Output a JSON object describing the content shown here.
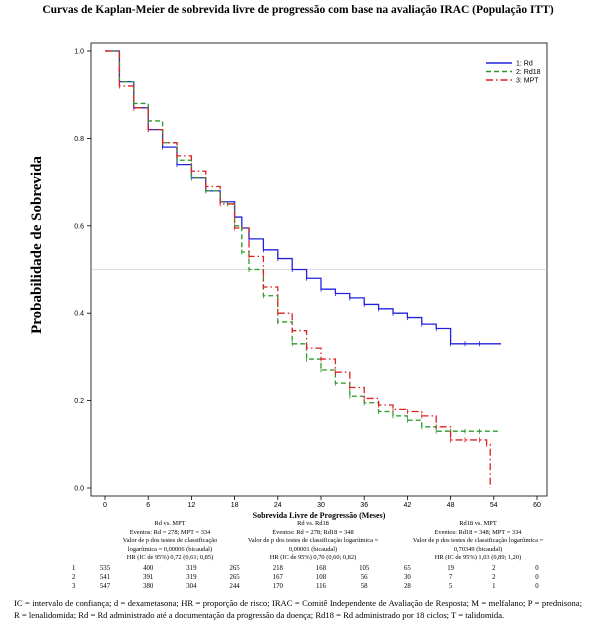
{
  "title": "Curvas de Kaplan-Meier de sobrevida livre de progressão com base na avaliação IRAC (População ITT)",
  "chart_data": {
    "type": "line",
    "title": "Curvas de Kaplan-Meier de sobrevida livre de progressão com base na avaliação IRAC (População ITT)",
    "xlabel": "Sobrevida Livre de Progressão (Meses)",
    "ylabel": "Probabilidade de Sobrevida",
    "xlim": [
      0,
      60
    ],
    "ylim": [
      0,
      1
    ],
    "xticks": [
      0,
      6,
      12,
      18,
      24,
      30,
      36,
      42,
      48,
      54,
      60
    ],
    "yticks": [
      0.0,
      0.2,
      0.4,
      0.6,
      0.8,
      1.0
    ],
    "xtick_labels": [
      "0",
      "6",
      "12",
      "18",
      "24",
      "30",
      "36",
      "42",
      "48",
      "54",
      "60"
    ],
    "ytick_labels": [
      "0.0",
      "0.2",
      "0.4",
      "0.6",
      "0.8",
      "1.0"
    ],
    "reference_line_y": 0.5,
    "legend_position": "top-right",
    "series": [
      {
        "name": "1: Rd",
        "color": "#2222dd",
        "style": "solid",
        "x": [
          0,
          2,
          4,
          6,
          8,
          10,
          12,
          14,
          16,
          18,
          19,
          20,
          22,
          24,
          26,
          28,
          30,
          32,
          34,
          36,
          38,
          40,
          42,
          44,
          46,
          48,
          50,
          52,
          55
        ],
        "y": [
          1.0,
          0.93,
          0.87,
          0.82,
          0.78,
          0.74,
          0.71,
          0.68,
          0.655,
          0.62,
          0.595,
          0.57,
          0.545,
          0.525,
          0.5,
          0.48,
          0.455,
          0.445,
          0.435,
          0.42,
          0.41,
          0.4,
          0.39,
          0.375,
          0.365,
          0.33,
          0.33,
          0.33,
          0.33
        ]
      },
      {
        "name": "2: Rd18",
        "color": "#2a9a2a",
        "style": "dash",
        "x": [
          0,
          2,
          4,
          6,
          8,
          10,
          12,
          14,
          16,
          17,
          18,
          19,
          20,
          22,
          24,
          26,
          28,
          30,
          32,
          34,
          36,
          38,
          40,
          42,
          44,
          46,
          48,
          50,
          52,
          55
        ],
        "y": [
          1.0,
          0.93,
          0.88,
          0.84,
          0.79,
          0.75,
          0.71,
          0.68,
          0.655,
          0.65,
          0.6,
          0.54,
          0.5,
          0.44,
          0.38,
          0.33,
          0.295,
          0.27,
          0.24,
          0.21,
          0.195,
          0.175,
          0.165,
          0.155,
          0.14,
          0.13,
          0.13,
          0.13,
          0.13,
          0.13
        ]
      },
      {
        "name": "3: MPT",
        "color": "#dd2222",
        "style": "dashdot",
        "x": [
          0,
          2,
          4,
          6,
          8,
          10,
          12,
          14,
          16,
          18,
          20,
          22,
          24,
          26,
          28,
          30,
          32,
          34,
          36,
          38,
          40,
          42,
          44,
          46,
          48,
          50,
          52,
          53,
          53.5
        ],
        "y": [
          1.0,
          0.92,
          0.87,
          0.82,
          0.79,
          0.76,
          0.725,
          0.69,
          0.65,
          0.595,
          0.53,
          0.46,
          0.4,
          0.36,
          0.32,
          0.295,
          0.265,
          0.23,
          0.205,
          0.19,
          0.18,
          0.175,
          0.165,
          0.14,
          0.11,
          0.11,
          0.11,
          0.1,
          0.0
        ]
      }
    ]
  },
  "stats": [
    {
      "title": "Rd vs. MPT",
      "events": "Eventos: Rd = 278; MPT = 334",
      "p_label": "Valor de p dos testes de classificação",
      "p_value": "logarítmica = 0,00006 (bicaudal)",
      "hr": "HR (IC de 95%) 0,72 (0,61; 0,85)"
    },
    {
      "title": "Rd vs. Rd18",
      "events": "Eventos: Rd = 278; Rd18 = 348",
      "p_label": "Valor de p dos testes de classificação logarítmica =",
      "p_value": "0,00001 (bicaudal)",
      "hr": "HR (IC de 95%) 0,70 (0,60; 0,82)"
    },
    {
      "title": "Rd18 vs. MPT",
      "events": "Eventos: Rd18 = 348; MPT = 334",
      "p_label": "Valor de p dos testes de classificação logarítmica =",
      "p_value": "0,70349 (bicaudal)",
      "hr": "HR (IC de 95%) 1,03 (0,89; 1,20)"
    }
  ],
  "risk_table": [
    {
      "label": "1",
      "values": [
        "535",
        "400",
        "319",
        "265",
        "218",
        "168",
        "105",
        "65",
        "19",
        "2",
        "0"
      ]
    },
    {
      "label": "2",
      "values": [
        "541",
        "391",
        "319",
        "265",
        "167",
        "108",
        "56",
        "30",
        "7",
        "2",
        "0"
      ]
    },
    {
      "label": "3",
      "values": [
        "547",
        "380",
        "304",
        "244",
        "170",
        "116",
        "58",
        "28",
        "5",
        "1",
        "0"
      ]
    }
  ],
  "footnote": "IC = intervalo de confiança; d = dexametasona; HR = proporção de risco; IRAC = Comitê Independente de Avaliação de Resposta; M = melfalano; P = prednisona; R = lenalidomida; Rd = Rd administrado até a documentação da progressão da doença; Rd18 = Rd administrado por 18 ciclos; T = talidomida."
}
